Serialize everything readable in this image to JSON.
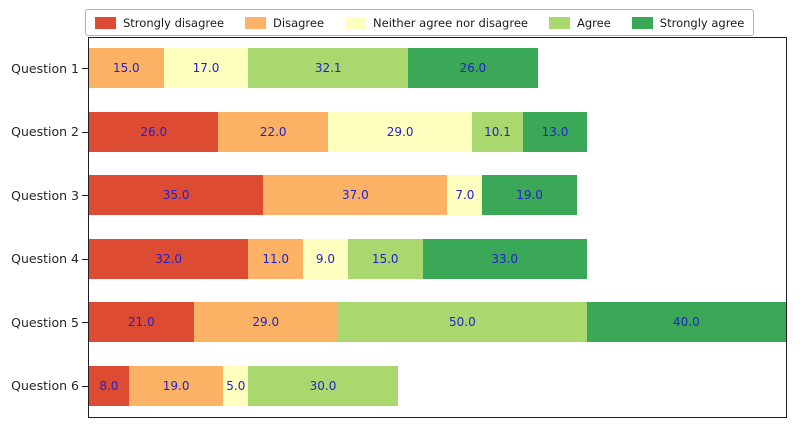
{
  "chart_data": {
    "type": "bar",
    "orientation": "horizontal",
    "stacked": true,
    "title": "",
    "xlabel": "",
    "ylabel": "",
    "xlim": [
      0,
      140
    ],
    "grid": false,
    "legend_position": "top",
    "value_label_color": "#2222cc",
    "value_label_format": "one_decimal",
    "categories": [
      "Question 1",
      "Question 2",
      "Question 3",
      "Question 4",
      "Question 5",
      "Question 6"
    ],
    "series": [
      {
        "name": "Strongly disagree",
        "color": "#dd4b32",
        "values": [
          0,
          26.0,
          35.0,
          32.0,
          21.0,
          8.0
        ]
      },
      {
        "name": "Disagree",
        "color": "#fbb264",
        "values": [
          15.0,
          22.0,
          37.0,
          11.0,
          29.0,
          19.0
        ]
      },
      {
        "name": "Neither agree nor disagree",
        "color": "#feffbe",
        "values": [
          17.0,
          29.0,
          7.0,
          9.0,
          0,
          5.0
        ]
      },
      {
        "name": "Agree",
        "color": "#a9d96e",
        "values": [
          32.1,
          10.1,
          0,
          15.0,
          50.0,
          30.0
        ]
      },
      {
        "name": "Strongly agree",
        "color": "#3aa857",
        "values": [
          26.0,
          13.0,
          19.0,
          33.0,
          40.0,
          0
        ]
      }
    ],
    "row_totals": [
      90.1,
      100.1,
      98.0,
      100.0,
      140.0,
      62.0
    ]
  }
}
